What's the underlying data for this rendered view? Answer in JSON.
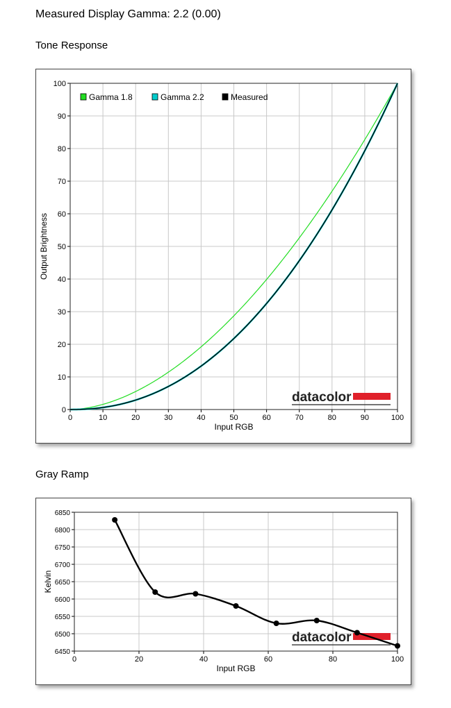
{
  "header": {
    "gamma_title": "Measured Display Gamma: 2.2 (0.00)",
    "tone_title": "Tone Response",
    "gray_title": "Gray Ramp"
  },
  "chart_data": [
    {
      "type": "line",
      "xlabel": "Input RGB",
      "ylabel": "Output Brightness",
      "xlim": [
        0,
        100
      ],
      "ylim": [
        0,
        100
      ],
      "xticks": [
        0,
        10,
        20,
        30,
        40,
        50,
        60,
        70,
        80,
        90,
        100
      ],
      "yticks": [
        0,
        10,
        20,
        30,
        40,
        50,
        60,
        70,
        80,
        90,
        100
      ],
      "grid": true,
      "legend": "top-left",
      "watermark": "datacolor",
      "series": [
        {
          "name": "Gamma 1.8",
          "color": "#22dd22",
          "gamma": 1.8,
          "x": [
            0,
            10,
            20,
            30,
            40,
            50,
            60,
            70,
            80,
            90,
            100
          ],
          "y": [
            0,
            1.6,
            5.5,
            11.5,
            19.2,
            28.7,
            39.9,
            52.7,
            66.9,
            82.8,
            100
          ]
        },
        {
          "name": "Gamma 2.2",
          "color": "#00cccc",
          "gamma": 2.2,
          "x": [
            0,
            10,
            20,
            30,
            40,
            50,
            60,
            70,
            80,
            90,
            100
          ],
          "y": [
            0,
            0.6,
            2.9,
            7.1,
            13.3,
            21.8,
            32.5,
            45.6,
            61.2,
            79.3,
            100
          ]
        },
        {
          "name": "Measured",
          "color": "#000000",
          "gamma": 2.2,
          "x": [
            0,
            10,
            20,
            30,
            40,
            50,
            60,
            70,
            80,
            90,
            100
          ],
          "y": [
            0,
            0.6,
            2.9,
            7.1,
            13.3,
            21.8,
            32.5,
            45.6,
            61.2,
            79.3,
            100
          ]
        }
      ]
    },
    {
      "type": "line",
      "xlabel": "Input RGB",
      "ylabel": "Kelvin",
      "xlim": [
        0,
        100
      ],
      "ylim": [
        6450,
        6850
      ],
      "xticks": [
        0,
        20,
        40,
        60,
        80,
        100
      ],
      "yticks": [
        6450,
        6500,
        6550,
        6600,
        6650,
        6700,
        6750,
        6800,
        6850
      ],
      "grid": true,
      "watermark": "datacolor",
      "series": [
        {
          "name": "",
          "color": "#000000",
          "x": [
            12.5,
            25,
            37.5,
            50,
            62.5,
            75,
            87.5,
            100
          ],
          "y": [
            6828,
            6620,
            6615,
            6580,
            6530,
            6538,
            6503,
            6465
          ]
        }
      ]
    }
  ]
}
